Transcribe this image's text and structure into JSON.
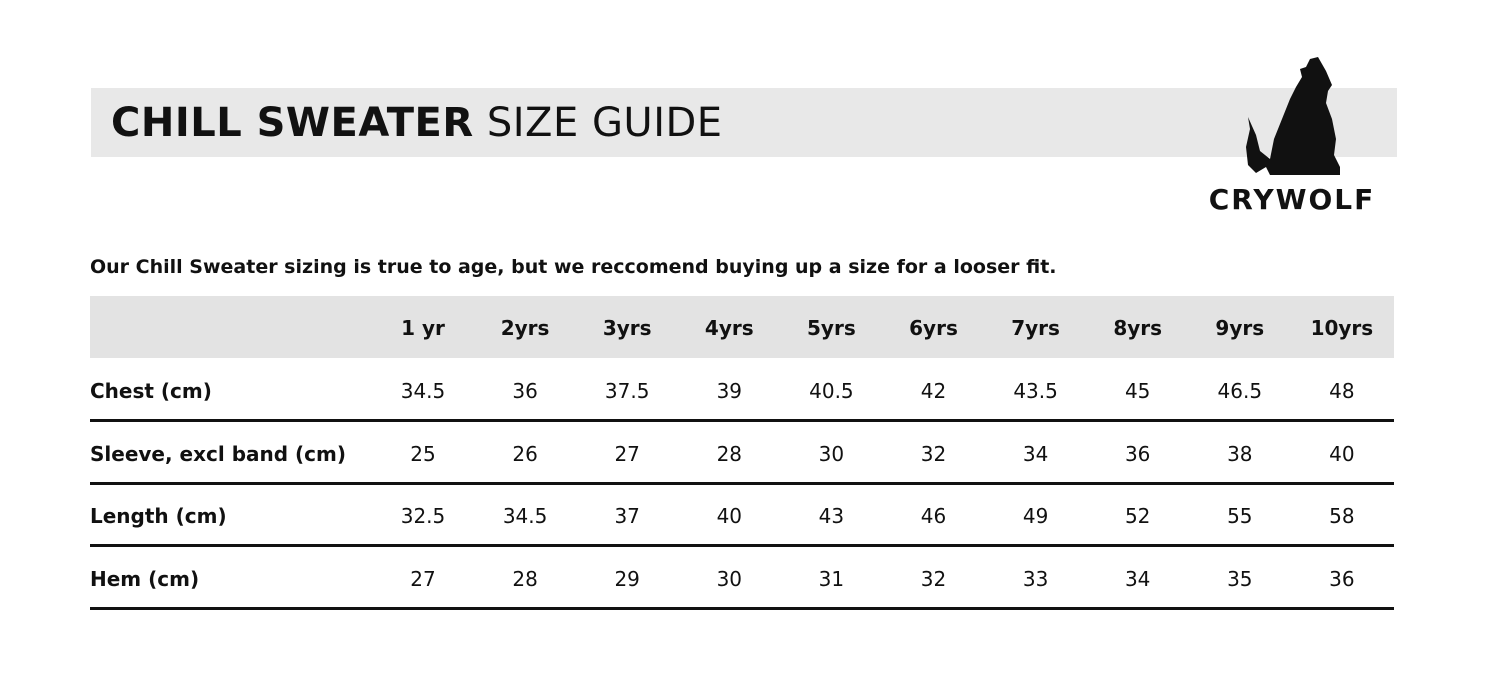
{
  "header": {
    "title_bold": "CHILL SWEATER",
    "title_rest": "SIZE GUIDE"
  },
  "logo": {
    "text": "CRYWOLF"
  },
  "note": "Our Chill Sweater sizing is true to age, but we reccomend buying up a size for a looser fit.",
  "table": {
    "columns": [
      "1 yr",
      "2yrs",
      "3yrs",
      "4yrs",
      "5yrs",
      "6yrs",
      "7yrs",
      "8yrs",
      "9yrs",
      "10yrs"
    ],
    "rows": [
      {
        "label": "Chest (cm)",
        "values": [
          34.5,
          36,
          37.5,
          39,
          40.5,
          42,
          43.5,
          45,
          46.5,
          48
        ]
      },
      {
        "label": "Sleeve, excl band (cm)",
        "values": [
          25,
          26,
          27,
          28,
          30,
          32,
          34,
          36,
          38,
          40
        ]
      },
      {
        "label": "Length (cm)",
        "values": [
          32.5,
          34.5,
          37,
          40,
          43,
          46,
          49,
          52,
          55,
          58
        ]
      },
      {
        "label": "Hem (cm)",
        "values": [
          27,
          28,
          29,
          30,
          31,
          32,
          33,
          34,
          35,
          36
        ]
      }
    ]
  }
}
